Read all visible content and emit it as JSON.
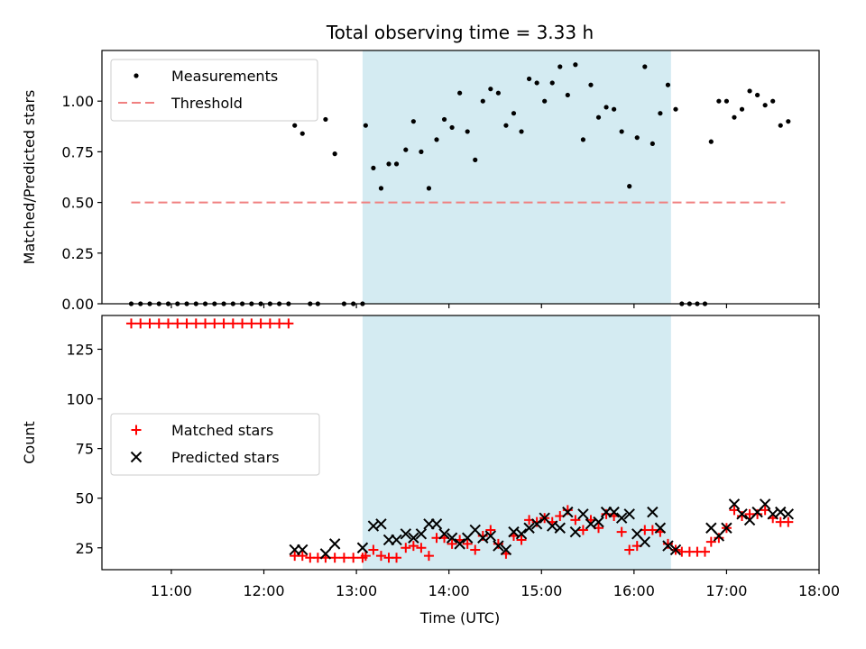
{
  "chart_data": {
    "type": "scatter",
    "title": "Total observing time = 3.33 h",
    "xlabel": "Time (UTC)",
    "x_ticks": [
      "11:00",
      "12:00",
      "13:00",
      "14:00",
      "15:00",
      "16:00",
      "17:00",
      "18:00"
    ],
    "xlim": [
      "10:15",
      "18:00"
    ],
    "highlight_window": {
      "start": "13:04",
      "end": "16:24",
      "color": "#d4ebf2"
    },
    "panels": [
      {
        "ylabel": "Matched/Predicted stars",
        "ylim": [
          0,
          1.25
        ],
        "y_ticks": [
          "0.00",
          "0.25",
          "0.50",
          "0.75",
          "1.00"
        ],
        "legend": {
          "placement": "upper-left"
        },
        "threshold": {
          "name": "Threshold",
          "value": 0.5,
          "x_start": "10:34",
          "x_end": "17:38",
          "color": "#f08080"
        },
        "series": [
          {
            "name": "Measurements",
            "marker": "dot",
            "color": "#000000",
            "points": [
              [
                "10:34",
                0
              ],
              [
                "10:40",
                0
              ],
              [
                "10:46",
                0
              ],
              [
                "10:52",
                0
              ],
              [
                "10:58",
                0
              ],
              [
                "11:04",
                0
              ],
              [
                "11:10",
                0
              ],
              [
                "11:16",
                0
              ],
              [
                "11:22",
                0
              ],
              [
                "11:28",
                0
              ],
              [
                "11:34",
                0
              ],
              [
                "11:40",
                0
              ],
              [
                "11:46",
                0
              ],
              [
                "11:52",
                0
              ],
              [
                "11:58",
                0
              ],
              [
                "12:04",
                0
              ],
              [
                "12:10",
                0
              ],
              [
                "12:16",
                0
              ],
              [
                "12:20",
                0.88
              ],
              [
                "12:25",
                0.84
              ],
              [
                "12:30",
                0
              ],
              [
                "12:35",
                0
              ],
              [
                "12:40",
                0.91
              ],
              [
                "12:46",
                0.74
              ],
              [
                "12:52",
                0
              ],
              [
                "12:58",
                0
              ],
              [
                "13:04",
                0
              ],
              [
                "13:06",
                0.88
              ],
              [
                "13:11",
                0.67
              ],
              [
                "13:16",
                0.57
              ],
              [
                "13:21",
                0.69
              ],
              [
                "13:26",
                0.69
              ],
              [
                "13:32",
                0.76
              ],
              [
                "13:37",
                0.9
              ],
              [
                "13:42",
                0.75
              ],
              [
                "13:47",
                0.57
              ],
              [
                "13:52",
                0.81
              ],
              [
                "13:57",
                0.91
              ],
              [
                "14:02",
                0.87
              ],
              [
                "14:07",
                1.04
              ],
              [
                "14:12",
                0.85
              ],
              [
                "14:17",
                0.71
              ],
              [
                "14:22",
                1.0
              ],
              [
                "14:27",
                1.06
              ],
              [
                "14:32",
                1.04
              ],
              [
                "14:37",
                0.88
              ],
              [
                "14:42",
                0.94
              ],
              [
                "14:47",
                0.85
              ],
              [
                "14:52",
                1.11
              ],
              [
                "14:57",
                1.09
              ],
              [
                "15:02",
                1.0
              ],
              [
                "15:07",
                1.09
              ],
              [
                "15:12",
                1.17
              ],
              [
                "15:17",
                1.03
              ],
              [
                "15:22",
                1.18
              ],
              [
                "15:27",
                0.81
              ],
              [
                "15:32",
                1.08
              ],
              [
                "15:37",
                0.92
              ],
              [
                "15:42",
                0.97
              ],
              [
                "15:47",
                0.96
              ],
              [
                "15:52",
                0.85
              ],
              [
                "15:57",
                0.58
              ],
              [
                "16:02",
                0.82
              ],
              [
                "16:07",
                1.17
              ],
              [
                "16:12",
                0.79
              ],
              [
                "16:17",
                0.94
              ],
              [
                "16:22",
                1.08
              ],
              [
                "16:27",
                0.96
              ],
              [
                "16:31",
                0
              ],
              [
                "16:36",
                0
              ],
              [
                "16:41",
                0
              ],
              [
                "16:46",
                0
              ],
              [
                "16:50",
                0.8
              ],
              [
                "16:55",
                1.0
              ],
              [
                "17:00",
                1.0
              ],
              [
                "17:05",
                0.92
              ],
              [
                "17:10",
                0.96
              ],
              [
                "17:15",
                1.05
              ],
              [
                "17:20",
                1.03
              ],
              [
                "17:25",
                0.98
              ],
              [
                "17:30",
                1.0
              ],
              [
                "17:35",
                0.88
              ],
              [
                "17:40",
                0.9
              ]
            ]
          }
        ]
      },
      {
        "ylabel": "Count",
        "ylim": [
          14,
          142
        ],
        "y_ticks": [
          "25",
          "50",
          "75",
          "100",
          "125"
        ],
        "legend": {
          "placement": "center-left"
        },
        "series": [
          {
            "name": "Matched stars",
            "marker": "plus",
            "color": "#ff0000",
            "points": [
              [
                "10:34",
                138
              ],
              [
                "10:40",
                138
              ],
              [
                "10:46",
                138
              ],
              [
                "10:52",
                138
              ],
              [
                "10:58",
                138
              ],
              [
                "11:04",
                138
              ],
              [
                "11:10",
                138
              ],
              [
                "11:16",
                138
              ],
              [
                "11:22",
                138
              ],
              [
                "11:28",
                138
              ],
              [
                "11:34",
                138
              ],
              [
                "11:40",
                138
              ],
              [
                "11:46",
                138
              ],
              [
                "11:52",
                138
              ],
              [
                "11:58",
                138
              ],
              [
                "12:04",
                138
              ],
              [
                "12:10",
                138
              ],
              [
                "12:16",
                138
              ],
              [
                "12:20",
                21
              ],
              [
                "12:25",
                21
              ],
              [
                "12:30",
                20
              ],
              [
                "12:35",
                20
              ],
              [
                "12:40",
                20
              ],
              [
                "12:46",
                20
              ],
              [
                "12:52",
                20
              ],
              [
                "12:58",
                20
              ],
              [
                "13:04",
                20
              ],
              [
                "13:06",
                21
              ],
              [
                "13:11",
                24
              ],
              [
                "13:16",
                21
              ],
              [
                "13:21",
                20
              ],
              [
                "13:26",
                20
              ],
              [
                "13:32",
                25
              ],
              [
                "13:37",
                26
              ],
              [
                "13:42",
                25
              ],
              [
                "13:47",
                21
              ],
              [
                "13:52",
                30
              ],
              [
                "13:57",
                30
              ],
              [
                "14:02",
                27
              ],
              [
                "14:07",
                29
              ],
              [
                "14:12",
                27
              ],
              [
                "14:17",
                24
              ],
              [
                "14:22",
                31
              ],
              [
                "14:27",
                34
              ],
              [
                "14:32",
                27
              ],
              [
                "14:37",
                22
              ],
              [
                "14:42",
                31
              ],
              [
                "14:47",
                29
              ],
              [
                "14:52",
                39
              ],
              [
                "14:57",
                38
              ],
              [
                "15:02",
                40
              ],
              [
                "15:07",
                38
              ],
              [
                "15:12",
                41
              ],
              [
                "15:17",
                44
              ],
              [
                "15:22",
                39
              ],
              [
                "15:27",
                34
              ],
              [
                "15:32",
                39
              ],
              [
                "15:37",
                35
              ],
              [
                "15:42",
                42
              ],
              [
                "15:47",
                41
              ],
              [
                "15:52",
                33
              ],
              [
                "15:57",
                24
              ],
              [
                "16:02",
                26
              ],
              [
                "16:07",
                34
              ],
              [
                "16:12",
                34
              ],
              [
                "16:17",
                33
              ],
              [
                "16:22",
                27
              ],
              [
                "16:27",
                24
              ],
              [
                "16:31",
                23
              ],
              [
                "16:36",
                23
              ],
              [
                "16:41",
                23
              ],
              [
                "16:46",
                23
              ],
              [
                "16:50",
                28
              ],
              [
                "16:55",
                30
              ],
              [
                "17:00",
                35
              ],
              [
                "17:05",
                44
              ],
              [
                "17:10",
                41
              ],
              [
                "17:15",
                42
              ],
              [
                "17:20",
                42
              ],
              [
                "17:25",
                44
              ],
              [
                "17:30",
                40
              ],
              [
                "17:35",
                38
              ],
              [
                "17:40",
                38
              ]
            ]
          },
          {
            "name": "Predicted stars",
            "marker": "x",
            "color": "#000000",
            "points": [
              [
                "12:20",
                24
              ],
              [
                "12:25",
                24
              ],
              [
                "12:40",
                22
              ],
              [
                "12:46",
                27
              ],
              [
                "13:04",
                25
              ],
              [
                "13:11",
                36
              ],
              [
                "13:16",
                37
              ],
              [
                "13:21",
                29
              ],
              [
                "13:26",
                29
              ],
              [
                "13:32",
                32
              ],
              [
                "13:37",
                30
              ],
              [
                "13:42",
                32
              ],
              [
                "13:47",
                37
              ],
              [
                "13:52",
                37
              ],
              [
                "13:57",
                32
              ],
              [
                "14:02",
                30
              ],
              [
                "14:07",
                27
              ],
              [
                "14:12",
                30
              ],
              [
                "14:17",
                34
              ],
              [
                "14:22",
                30
              ],
              [
                "14:27",
                31
              ],
              [
                "14:32",
                26
              ],
              [
                "14:37",
                24
              ],
              [
                "14:42",
                33
              ],
              [
                "14:47",
                32
              ],
              [
                "14:52",
                35
              ],
              [
                "14:57",
                37
              ],
              [
                "15:02",
                40
              ],
              [
                "15:07",
                36
              ],
              [
                "15:12",
                35
              ],
              [
                "15:17",
                43
              ],
              [
                "15:22",
                33
              ],
              [
                "15:27",
                42
              ],
              [
                "15:32",
                37
              ],
              [
                "15:37",
                38
              ],
              [
                "15:42",
                43
              ],
              [
                "15:47",
                43
              ],
              [
                "15:52",
                40
              ],
              [
                "15:57",
                42
              ],
              [
                "16:02",
                32
              ],
              [
                "16:07",
                28
              ],
              [
                "16:12",
                43
              ],
              [
                "16:17",
                35
              ],
              [
                "16:22",
                26
              ],
              [
                "16:27",
                24
              ],
              [
                "16:50",
                35
              ],
              [
                "16:55",
                31
              ],
              [
                "17:00",
                35
              ],
              [
                "17:05",
                47
              ],
              [
                "17:10",
                42
              ],
              [
                "17:15",
                39
              ],
              [
                "17:20",
                43
              ],
              [
                "17:25",
                47
              ],
              [
                "17:30",
                42
              ],
              [
                "17:35",
                43
              ],
              [
                "17:40",
                42
              ]
            ]
          }
        ]
      }
    ]
  }
}
